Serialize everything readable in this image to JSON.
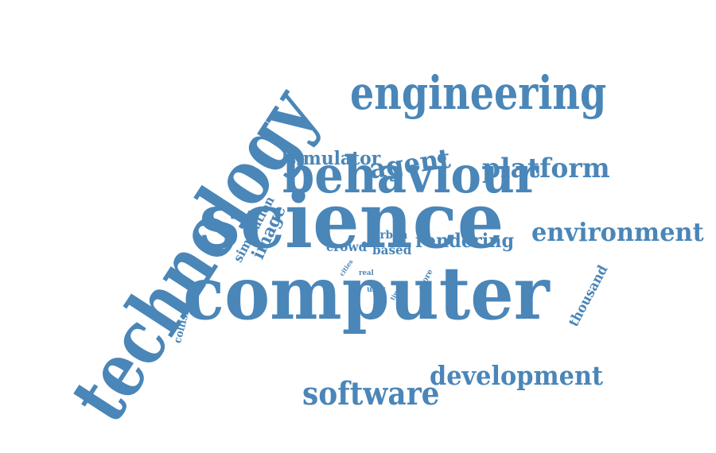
{
  "word_color": "#4a86b8",
  "background_color": "#ffffff",
  "words": [
    {
      "id": "technology",
      "text": "technology"
    },
    {
      "id": "science",
      "text": "science"
    },
    {
      "id": "computer",
      "text": "computer"
    },
    {
      "id": "engineering",
      "text": "engineering"
    },
    {
      "id": "behaviour",
      "text": "behaviour"
    },
    {
      "id": "environment",
      "text": "environment"
    },
    {
      "id": "platform",
      "text": "platform"
    },
    {
      "id": "development",
      "text": "development"
    },
    {
      "id": "software",
      "text": "software"
    },
    {
      "id": "agent",
      "text": "agent"
    },
    {
      "id": "simulator",
      "text": "simulator"
    },
    {
      "id": "rendering",
      "text": "rendering"
    },
    {
      "id": "simulation",
      "text": "simulation"
    },
    {
      "id": "image",
      "text": "image"
    },
    {
      "id": "crowd",
      "text": "crowd"
    },
    {
      "id": "based",
      "text": "based"
    },
    {
      "id": "urban",
      "text": "urban"
    },
    {
      "id": "thousand",
      "text": "thousand"
    },
    {
      "id": "collision",
      "text": "collision"
    },
    {
      "id": "more",
      "text": "more"
    },
    {
      "id": "user",
      "text": "user"
    },
    {
      "id": "real",
      "text": "real"
    },
    {
      "id": "cities",
      "text": "cities"
    },
    {
      "id": "time",
      "text": "time"
    }
  ]
}
